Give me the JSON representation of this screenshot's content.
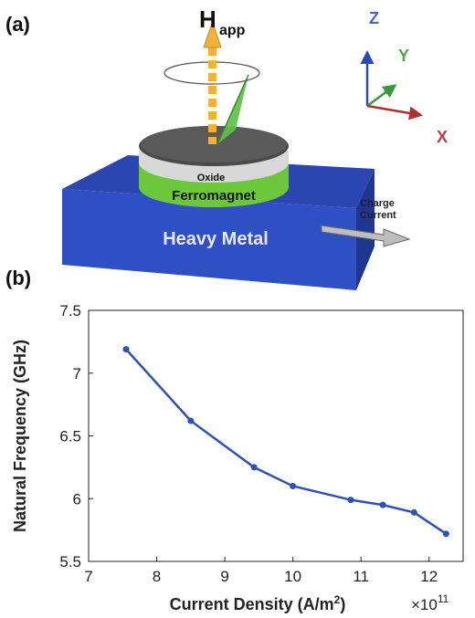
{
  "panels": {
    "a": {
      "label": "(a)"
    },
    "b": {
      "label": "(b)"
    }
  },
  "schematic": {
    "field_label": {
      "main": "H",
      "sub": "app"
    },
    "axes": {
      "z": "Z",
      "y": "Y",
      "x": "X"
    },
    "layers": {
      "oxide": "Oxide",
      "ferromagnet": "Ferromagnet",
      "heavy_metal": "Heavy Metal"
    },
    "current_label": {
      "line1": "Charge",
      "line2": "Current"
    },
    "colors": {
      "heavy_metal": "#2f4fc4",
      "ferromagnet": "#6cc83a",
      "oxide": "#d8d8d8",
      "cap": "#4a4a4a",
      "field_arrow": "#f0b23a",
      "precession_cone": "#5cc24a",
      "axis_z": "#2a48b8",
      "axis_y": "#3a9a3a",
      "axis_x": "#b03030"
    }
  },
  "chart_data": {
    "type": "line",
    "x": [
      7.55,
      8.5,
      9.43,
      10.0,
      10.85,
      11.32,
      11.78,
      12.25
    ],
    "y": [
      7.19,
      6.62,
      6.25,
      6.1,
      5.99,
      5.95,
      5.89,
      5.72
    ],
    "xlabel": {
      "main": "Current Density (A/m",
      "sup": "2",
      "tail": ")"
    },
    "ylabel": "Natural Frequency (GHz)",
    "x_multiplier": {
      "base": "×10",
      "exp": "11"
    },
    "xlim": [
      7,
      12.5
    ],
    "ylim": [
      5.5,
      7.5
    ],
    "xticks": [
      "7",
      "8",
      "9",
      "10",
      "11",
      "12"
    ],
    "yticks": [
      "5.5",
      "6",
      "6.5",
      "7",
      "7.5"
    ],
    "grid": false,
    "line_color": "#2f52b8"
  }
}
